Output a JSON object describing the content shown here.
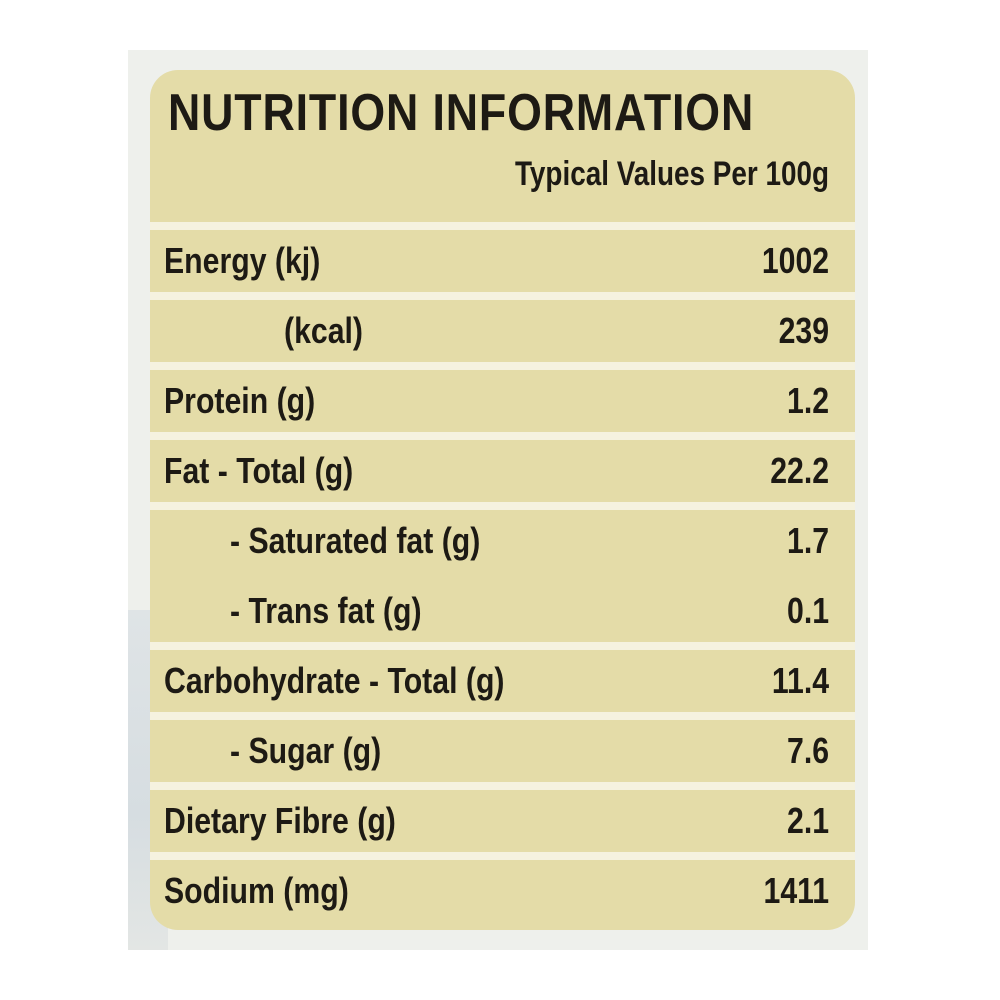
{
  "label": {
    "title": "NUTRITION INFORMATION",
    "subtitle": "Typical Values Per 100g",
    "colors": {
      "panel": "#e4dca8",
      "divider": "#f5f2df",
      "text": "#1d1a14"
    },
    "rows": [
      {
        "name": "Energy (kj)",
        "value": "1002"
      },
      {
        "name": "(kcal)",
        "value": "239"
      },
      {
        "name": "Protein (g)",
        "value": "1.2"
      },
      {
        "name": "Fat - Total (g)",
        "value": "22.2"
      },
      {
        "name": "- Saturated fat (g)",
        "value": "1.7"
      },
      {
        "name": "- Trans fat (g)",
        "value": "0.1"
      },
      {
        "name": "Carbohydrate - Total (g)",
        "value": "11.4"
      },
      {
        "name": "- Sugar (g)",
        "value": "7.6"
      },
      {
        "name": "Dietary Fibre (g)",
        "value": "2.1"
      },
      {
        "name": "Sodium (mg)",
        "value": "1411"
      }
    ]
  }
}
